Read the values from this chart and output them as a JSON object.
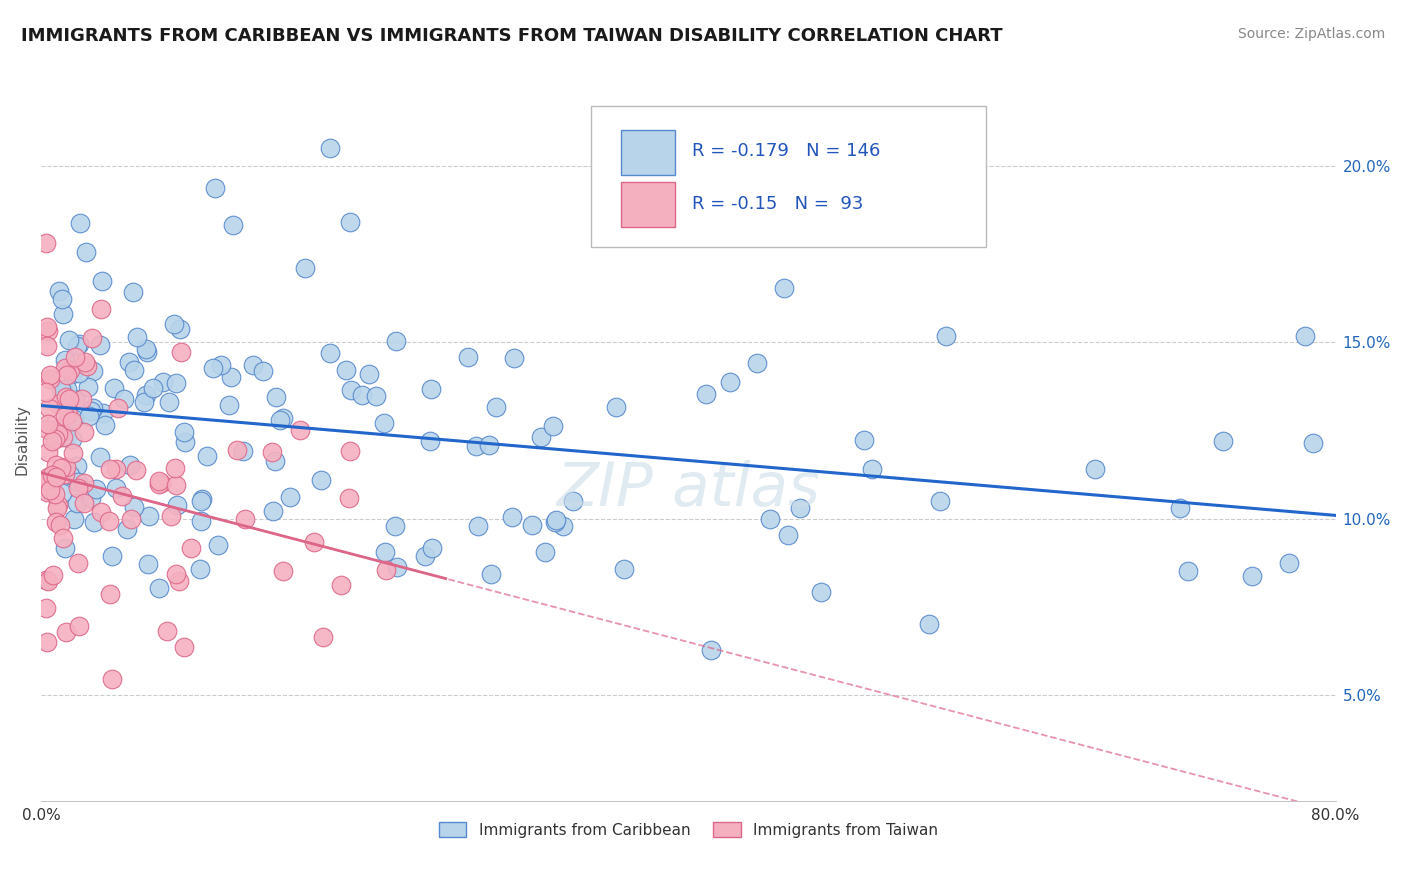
{
  "title": "IMMIGRANTS FROM CARIBBEAN VS IMMIGRANTS FROM TAIWAN DISABILITY CORRELATION CHART",
  "source": "Source: ZipAtlas.com",
  "ylabel": "Disability",
  "xlim": [
    0.0,
    0.8
  ],
  "ylim": [
    0.02,
    0.225
  ],
  "x_ticks": [
    0.0,
    0.1,
    0.2,
    0.3,
    0.4,
    0.5,
    0.6,
    0.7,
    0.8
  ],
  "x_tick_labels": [
    "0.0%",
    "",
    "",
    "",
    "",
    "",
    "",
    "",
    "80.0%"
  ],
  "y_ticks_right": [
    0.05,
    0.1,
    0.15,
    0.2
  ],
  "y_tick_labels_right": [
    "5.0%",
    "10.0%",
    "15.0%",
    "20.0%"
  ],
  "caribbean_color": "#b8d4ea",
  "caribbean_edge": "#5588cc",
  "taiwan_color": "#f5b0c0",
  "taiwan_edge": "#dd6688",
  "trend_caribbean_color": "#2266cc",
  "trend_taiwan_color": "#dd6688",
  "R_caribbean": -0.179,
  "N_caribbean": 146,
  "R_taiwan": -0.15,
  "N_taiwan": 93,
  "legend_R_color": "#2255bb",
  "background_color": "#ffffff",
  "grid_color": "#cccccc",
  "title_color": "#1a1a1a",
  "source_color": "#888888",
  "watermark_color": "#ccdde8"
}
